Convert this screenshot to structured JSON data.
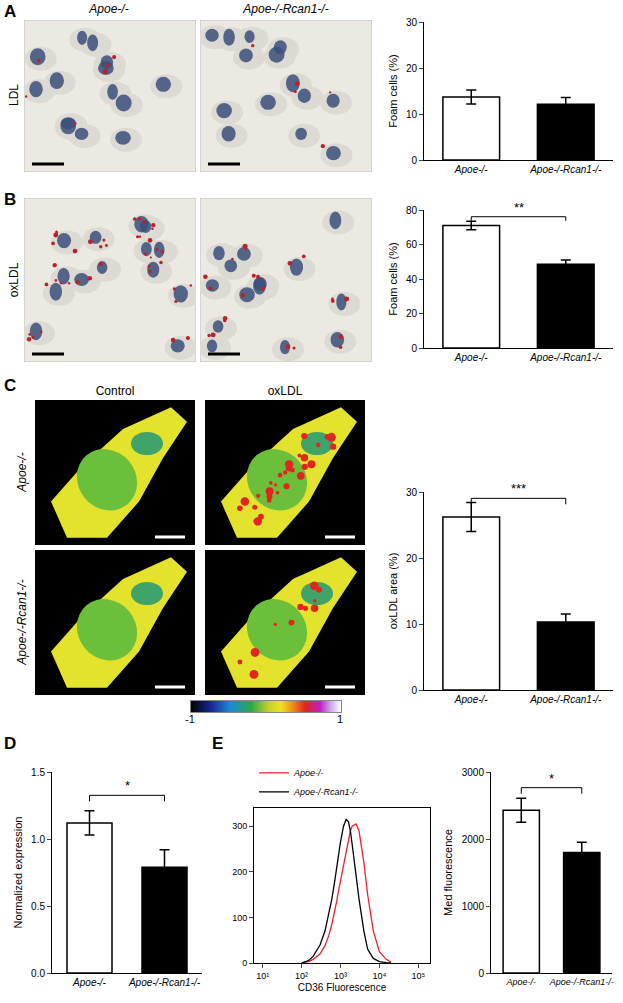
{
  "chart_data": [
    {
      "type": "bar",
      "categories": [
        "Apoe-/-",
        "Apoe-/-Rcan1-/-"
      ],
      "values": [
        13.7,
        12.1
      ],
      "error": [
        1.5,
        1.5
      ],
      "colors": [
        "#ffffff",
        "#000000"
      ],
      "ylabel": "Foam cells (%)",
      "ylim": [
        0,
        30
      ],
      "yticks": [
        0,
        10,
        20,
        30
      ]
    },
    {
      "type": "bar",
      "categories": [
        "Apoe-/-",
        "Apoe-/-Rcan1-/-"
      ],
      "values": [
        71,
        48.5
      ],
      "error": [
        2.5,
        2.5
      ],
      "colors": [
        "#ffffff",
        "#000000"
      ],
      "ylabel": "Foam cells (%)",
      "ylim": [
        0,
        80
      ],
      "yticks": [
        0,
        20,
        40,
        60,
        80
      ],
      "annotations": [
        {
          "text": "**"
        }
      ]
    },
    {
      "type": "bar",
      "categories": [
        "Apoe-/-",
        "Apoe-/-Rcan1-/-"
      ],
      "values": [
        26.2,
        10.3
      ],
      "error": [
        2.2,
        1.2
      ],
      "colors": [
        "#ffffff",
        "#000000"
      ],
      "ylabel": "oxLDL area (%)",
      "ylim": [
        0,
        30
      ],
      "yticks": [
        0,
        10,
        20,
        30
      ],
      "annotations": [
        {
          "text": "***"
        }
      ]
    },
    {
      "type": "bar",
      "categories": [
        "Apoe-/-",
        "Apoe-/-Rcan1-/-"
      ],
      "values": [
        1.12,
        0.79
      ],
      "error": [
        0.09,
        0.13
      ],
      "colors": [
        "#ffffff",
        "#000000"
      ],
      "ylabel": "Normalized expression",
      "ylim": [
        0,
        1.5
      ],
      "yticks": [
        {
          "value": 0,
          "label": "0.0"
        },
        {
          "value": 0.5,
          "label": "0.5"
        },
        {
          "value": 1,
          "label": "1.0"
        },
        {
          "value": 1.5,
          "label": "1.5"
        }
      ],
      "annotations": [
        {
          "text": "*"
        }
      ]
    },
    {
      "type": "line",
      "xlabel": "CD36 Fluorescence",
      "log": "x",
      "legend": "upper left",
      "x": [
        100,
        150,
        200,
        300,
        400,
        500,
        600,
        700,
        800,
        900,
        1000,
        1200,
        1400,
        1600,
        1800,
        2000,
        2500,
        3000,
        4000,
        5000,
        7000,
        10000,
        15000,
        20000
      ],
      "series": [
        {
          "name": "Apoe-/-",
          "color": "#e8262b",
          "values": [
            0,
            3,
            8,
            20,
            38,
            60,
            85,
            110,
            135,
            160,
            180,
            220,
            250,
            275,
            290,
            300,
            305,
            290,
            220,
            150,
            70,
            25,
            8,
            2
          ]
        },
        {
          "name": "Apoe-/-Rcan1-/-",
          "color": "#000000",
          "values": [
            0,
            5,
            15,
            40,
            70,
            105,
            140,
            175,
            210,
            240,
            265,
            300,
            315,
            310,
            290,
            260,
            195,
            140,
            70,
            30,
            10,
            3,
            1,
            0
          ]
        }
      ],
      "xlim": [
        6,
        200000
      ],
      "xticks": [
        {
          "value": 10,
          "label": "10¹"
        },
        {
          "value": 100,
          "label": "10²"
        },
        {
          "value": 1000,
          "label": "10³"
        },
        {
          "value": 10000,
          "label": "10⁴"
        },
        {
          "value": 100000,
          "label": "10⁵"
        }
      ],
      "ylim": [
        0,
        340
      ],
      "yticks": [
        0,
        100,
        200,
        300
      ]
    },
    {
      "type": "bar",
      "categories": [
        "Apoe-/-",
        "Apoe-/-Rcan1-/-"
      ],
      "values": [
        2430,
        1800
      ],
      "error": [
        180,
        150
      ],
      "colors": [
        "#ffffff",
        "#000000"
      ],
      "ylabel": "Med fluorescence",
      "ylim": [
        0,
        3000
      ],
      "yticks": [
        0,
        1000,
        2000,
        3000
      ],
      "annotations": [
        {
          "text": "*"
        }
      ]
    }
  ],
  "panels": [
    {
      "label": "A",
      "row_label": "LDL",
      "image_titles": [
        "Apoe-/-",
        "Apoe-/-Rcan1-/-"
      ]
    },
    {
      "label": "B",
      "row_label": "oxLDL"
    },
    {
      "label": "C",
      "column_labels": [
        "Control",
        "oxLDL"
      ],
      "row_labels": [
        "Apoe-/-",
        "Apoe-/-Rcan1-/-"
      ],
      "colorbar": {
        "range": [
          -1,
          1
        ],
        "ticks": [
          -1,
          1
        ]
      }
    },
    {
      "label": "D"
    },
    {
      "label": "E"
    }
  ]
}
